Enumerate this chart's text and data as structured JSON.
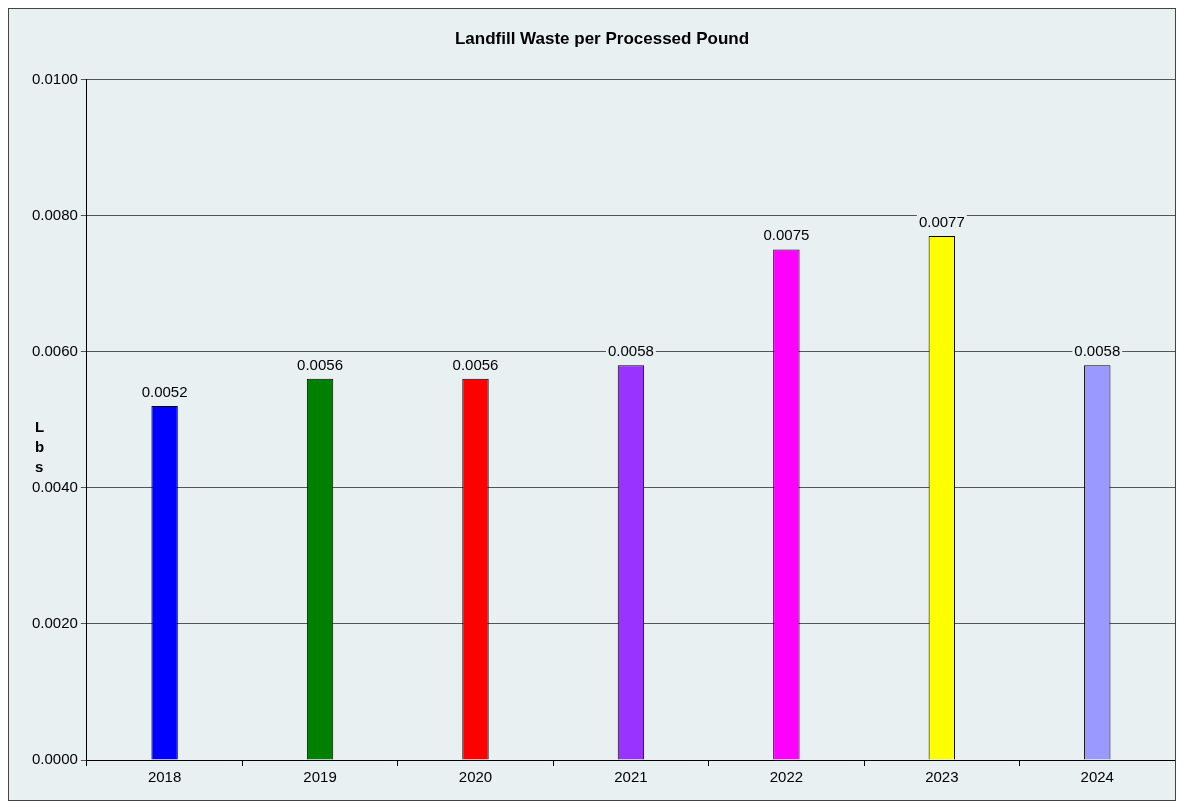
{
  "chart_data": {
    "type": "bar",
    "title": "Landfill Waste per Processed Pound",
    "ylabel": "Lbs",
    "categories": [
      "2018",
      "2019",
      "2020",
      "2021",
      "2022",
      "2023",
      "2024"
    ],
    "values": [
      0.0052,
      0.0056,
      0.0056,
      0.0058,
      0.0075,
      0.0077,
      0.0058
    ],
    "colors": [
      "#0000ff",
      "#008000",
      "#ff0000",
      "#9933ff",
      "#ff00ff",
      "#ffff00",
      "#9999ff"
    ],
    "ylim": [
      0,
      0.01
    ],
    "yticks": [
      "0.0000",
      "0.0020",
      "0.0040",
      "0.0060",
      "0.0080",
      "0.0100"
    ],
    "grid": "y",
    "data_labels": true,
    "legend": false
  }
}
